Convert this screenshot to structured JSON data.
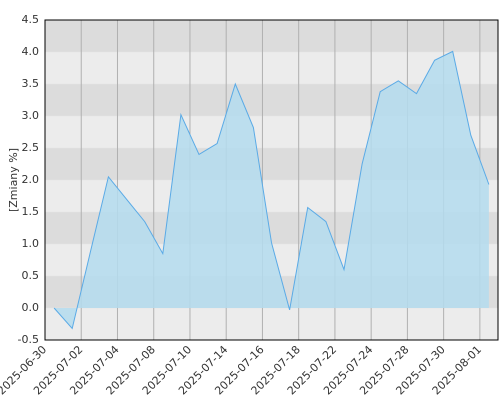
{
  "chart_data": {
    "type": "area",
    "y_label": "[Zmiany %]",
    "categories": [
      "2025-06-30",
      null,
      "2025-07-02",
      null,
      "2025-07-04",
      null,
      "2025-07-08",
      null,
      "2025-07-10",
      null,
      "2025-07-14",
      null,
      "2025-07-16",
      null,
      "2025-07-18",
      null,
      "2025-07-22",
      null,
      "2025-07-24",
      null,
      "2025-07-28",
      null,
      "2025-07-30",
      null,
      "2025-08-01"
    ],
    "values": [
      0,
      -0.32,
      0.87,
      2.05,
      1.7,
      1.35,
      0.85,
      3.02,
      2.4,
      2.57,
      3.5,
      2.82,
      1.02,
      -0.03,
      1.57,
      1.35,
      0.6,
      2.25,
      3.38,
      3.55,
      3.35,
      3.87,
      4.01,
      2.7,
      1.93
    ],
    "color": "#5aaae6",
    "fill": "#b4dcee",
    "ylim": [
      -0.5,
      4.5
    ],
    "yticks": [
      -0.5,
      {
        "value": 0,
        "label": "0.0"
      },
      0.5,
      {
        "value": 1,
        "label": "1.0"
      },
      1.5,
      {
        "value": 2,
        "label": "2.0"
      },
      2.5,
      {
        "value": 3,
        "label": "3.0"
      },
      3.5,
      {
        "value": 4,
        "label": "4.0"
      },
      4.5
    ],
    "grid": true
  }
}
